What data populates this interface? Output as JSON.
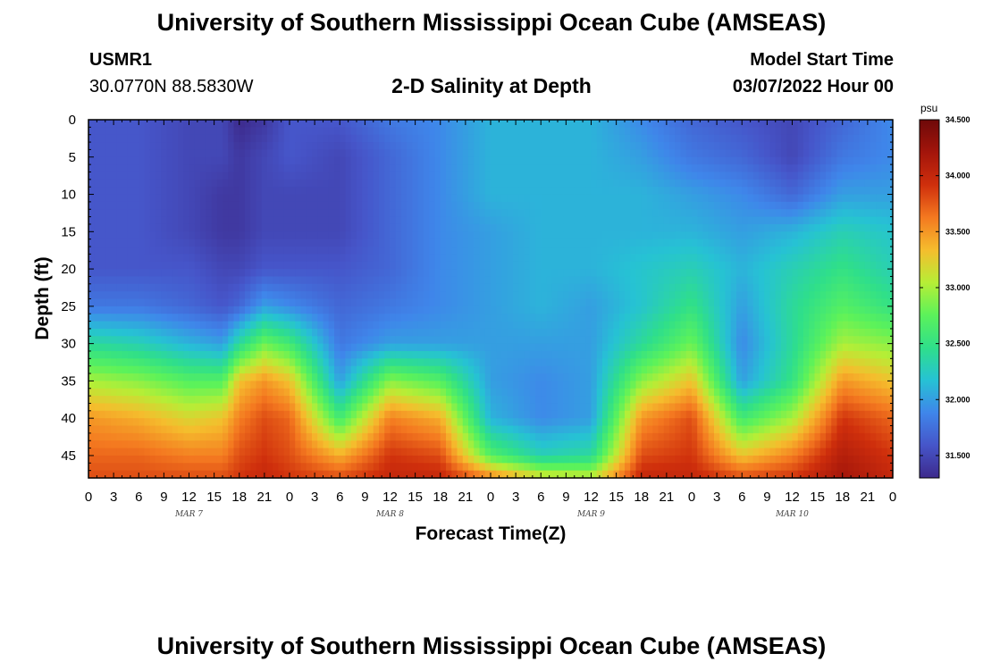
{
  "page": {
    "title": "University of Southern Mississippi Ocean Cube (AMSEAS)",
    "station": "USMR1",
    "coordinates": "30.0770N  88.5830W",
    "subtitle": "2-D Salinity at Depth",
    "model_start_label": "Model Start Time",
    "model_start_value": "03/07/2022 Hour 00",
    "footer_title": "University of Southern Mississippi Ocean Cube (AMSEAS)"
  },
  "colors": {
    "scale": [
      "#3d2a8c",
      "#4655c9",
      "#3f86ea",
      "#26c2d4",
      "#2fdf8a",
      "#5cf25a",
      "#b6ee36",
      "#f5bd2d",
      "#f47920",
      "#cf2f0c",
      "#a3150b",
      "#6e0909"
    ]
  },
  "chart_data": {
    "type": "heatmap",
    "title": "2-D Salinity at Depth",
    "xlabel": "Forecast Time(Z)",
    "ylabel": "Depth (ft)",
    "x_tick_labels": [
      "0",
      "3",
      "6",
      "9",
      "12",
      "15",
      "18",
      "21",
      "0",
      "3",
      "6",
      "9",
      "12",
      "15",
      "18",
      "21",
      "0",
      "3",
      "6",
      "9",
      "12",
      "15",
      "18",
      "21",
      "0",
      "3",
      "6",
      "9",
      "12",
      "15",
      "18",
      "21",
      "0"
    ],
    "x_range_hours": [
      0,
      96
    ],
    "day_labels": [
      {
        "label": "MAR 7",
        "hour": 12
      },
      {
        "label": "MAR 8",
        "hour": 36
      },
      {
        "label": "MAR 9",
        "hour": 60
      },
      {
        "label": "MAR 10",
        "hour": 84
      }
    ],
    "y_tick_labels": [
      "0",
      "5",
      "10",
      "15",
      "20",
      "25",
      "30",
      "35",
      "40",
      "45"
    ],
    "y_range_ft": [
      0,
      48
    ],
    "colorbar": {
      "unit": "psu",
      "range": [
        31.3,
        34.5
      ],
      "tick_labels": [
        "34.500",
        "34.000",
        "33.500",
        "33.000",
        "32.500",
        "32.000",
        "31.500"
      ]
    },
    "salinity_field": {
      "description_units": "psu",
      "times_hours": [
        0,
        6,
        12,
        16,
        18,
        21,
        24,
        30,
        36,
        42,
        48,
        54,
        60,
        66,
        72,
        78,
        84,
        90,
        96
      ],
      "depths_ft": [
        0,
        5,
        10,
        15,
        20,
        25,
        30,
        35,
        40,
        45,
        48
      ],
      "values": [
        [
          31.6,
          31.6,
          31.6,
          31.6,
          31.6,
          31.8,
          32.4,
          33.0,
          33.5,
          33.7,
          33.8
        ],
        [
          31.6,
          31.6,
          31.6,
          31.6,
          31.6,
          31.8,
          32.3,
          32.9,
          33.4,
          33.7,
          33.8
        ],
        [
          31.5,
          31.5,
          31.5,
          31.5,
          31.6,
          31.7,
          32.1,
          32.7,
          33.2,
          33.6,
          33.8
        ],
        [
          31.5,
          31.5,
          31.4,
          31.4,
          31.5,
          31.6,
          32.0,
          32.7,
          33.3,
          33.6,
          33.8
        ],
        [
          31.3,
          31.4,
          31.4,
          31.4,
          31.5,
          31.7,
          32.4,
          33.3,
          33.6,
          33.8,
          33.9
        ],
        [
          31.4,
          31.5,
          31.5,
          31.5,
          31.6,
          32.0,
          32.8,
          33.5,
          33.8,
          33.9,
          34.0
        ],
        [
          31.6,
          31.6,
          31.5,
          31.5,
          31.6,
          31.9,
          32.6,
          33.3,
          33.7,
          33.8,
          33.9
        ],
        [
          31.6,
          31.5,
          31.5,
          31.5,
          31.6,
          31.7,
          31.8,
          32.0,
          32.6,
          33.4,
          33.8
        ],
        [
          31.8,
          31.7,
          31.7,
          31.7,
          31.7,
          31.8,
          32.0,
          32.9,
          33.6,
          33.9,
          34.0
        ],
        [
          31.9,
          31.9,
          31.9,
          31.9,
          31.9,
          31.9,
          32.0,
          32.7,
          33.4,
          33.8,
          34.0
        ],
        [
          32.1,
          32.1,
          32.1,
          32.0,
          32.0,
          32.0,
          32.0,
          32.0,
          32.1,
          32.7,
          33.6
        ],
        [
          32.1,
          32.1,
          32.1,
          32.1,
          32.1,
          32.1,
          32.0,
          31.9,
          31.9,
          32.3,
          33.2
        ],
        [
          32.1,
          32.1,
          32.1,
          32.1,
          32.1,
          32.0,
          32.0,
          32.0,
          32.0,
          32.4,
          33.1
        ],
        [
          31.9,
          32.0,
          32.1,
          32.1,
          32.2,
          32.2,
          32.4,
          32.9,
          33.5,
          33.8,
          34.0
        ],
        [
          31.7,
          31.8,
          32.0,
          32.1,
          32.3,
          32.5,
          32.8,
          33.3,
          33.8,
          33.9,
          34.0
        ],
        [
          31.6,
          31.7,
          31.9,
          32.0,
          32.1,
          32.0,
          31.9,
          32.0,
          32.6,
          33.3,
          33.8
        ],
        [
          31.5,
          31.5,
          31.7,
          32.1,
          32.3,
          32.4,
          32.4,
          32.5,
          33.0,
          33.6,
          33.9
        ],
        [
          31.7,
          31.8,
          32.0,
          32.3,
          32.5,
          32.7,
          33.0,
          33.5,
          33.9,
          34.1,
          34.2
        ],
        [
          31.9,
          31.9,
          32.0,
          32.2,
          32.3,
          32.5,
          32.9,
          33.3,
          33.7,
          33.9,
          34.0
        ]
      ]
    }
  }
}
